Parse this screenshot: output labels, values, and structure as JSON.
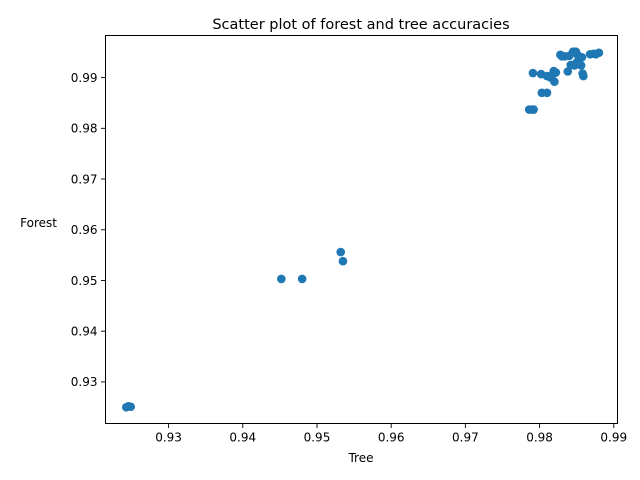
{
  "chart_data": {
    "type": "scatter",
    "title": "Scatter plot of forest and tree accuracies",
    "xlabel": "Tree",
    "ylabel": "Forest",
    "xlim": [
      0.9215,
      0.9905
    ],
    "ylim": [
      0.9218,
      0.9983
    ],
    "xticks": [
      {
        "value": 0.93,
        "label": "0.93"
      },
      {
        "value": 0.94,
        "label": "0.94"
      },
      {
        "value": 0.95,
        "label": "0.95"
      },
      {
        "value": 0.96,
        "label": "0.96"
      },
      {
        "value": 0.97,
        "label": "0.97"
      },
      {
        "value": 0.98,
        "label": "0.98"
      },
      {
        "value": 0.99,
        "label": "0.99"
      }
    ],
    "yticks": [
      {
        "value": 0.93,
        "label": "0.93"
      },
      {
        "value": 0.94,
        "label": "0.94"
      },
      {
        "value": 0.95,
        "label": "0.95"
      },
      {
        "value": 0.96,
        "label": "0.96"
      },
      {
        "value": 0.97,
        "label": "0.97"
      },
      {
        "value": 0.98,
        "label": "0.98"
      },
      {
        "value": 0.99,
        "label": "0.99"
      }
    ],
    "grid": false,
    "marker_color": "#1f77b4",
    "points": [
      {
        "x": 0.9243,
        "y": 0.925
      },
      {
        "x": 0.9246,
        "y": 0.9252
      },
      {
        "x": 0.9249,
        "y": 0.9251
      },
      {
        "x": 0.9452,
        "y": 0.9503
      },
      {
        "x": 0.948,
        "y": 0.9503
      },
      {
        "x": 0.9532,
        "y": 0.9556
      },
      {
        "x": 0.9535,
        "y": 0.9538
      },
      {
        "x": 0.9786,
        "y": 0.9837
      },
      {
        "x": 0.979,
        "y": 0.9837
      },
      {
        "x": 0.9792,
        "y": 0.9837
      },
      {
        "x": 0.9791,
        "y": 0.9909
      },
      {
        "x": 0.9802,
        "y": 0.9907
      },
      {
        "x": 0.9803,
        "y": 0.987
      },
      {
        "x": 0.981,
        "y": 0.987
      },
      {
        "x": 0.981,
        "y": 0.9903
      },
      {
        "x": 0.9815,
        "y": 0.99
      },
      {
        "x": 0.9818,
        "y": 0.9907
      },
      {
        "x": 0.9819,
        "y": 0.9913
      },
      {
        "x": 0.982,
        "y": 0.9892
      },
      {
        "x": 0.9822,
        "y": 0.991
      },
      {
        "x": 0.9828,
        "y": 0.9945
      },
      {
        "x": 0.983,
        "y": 0.9942
      },
      {
        "x": 0.9834,
        "y": 0.9942
      },
      {
        "x": 0.9838,
        "y": 0.9912
      },
      {
        "x": 0.984,
        "y": 0.9943
      },
      {
        "x": 0.9842,
        "y": 0.9925
      },
      {
        "x": 0.9845,
        "y": 0.9951
      },
      {
        "x": 0.9847,
        "y": 0.9924
      },
      {
        "x": 0.9849,
        "y": 0.9951
      },
      {
        "x": 0.985,
        "y": 0.993
      },
      {
        "x": 0.9851,
        "y": 0.9945
      },
      {
        "x": 0.9853,
        "y": 0.994
      },
      {
        "x": 0.9856,
        "y": 0.9924
      },
      {
        "x": 0.9857,
        "y": 0.994
      },
      {
        "x": 0.9858,
        "y": 0.9908
      },
      {
        "x": 0.9859,
        "y": 0.9903
      },
      {
        "x": 0.9868,
        "y": 0.9946
      },
      {
        "x": 0.9873,
        "y": 0.9947
      },
      {
        "x": 0.9876,
        "y": 0.9946
      },
      {
        "x": 0.988,
        "y": 0.9949
      }
    ]
  }
}
